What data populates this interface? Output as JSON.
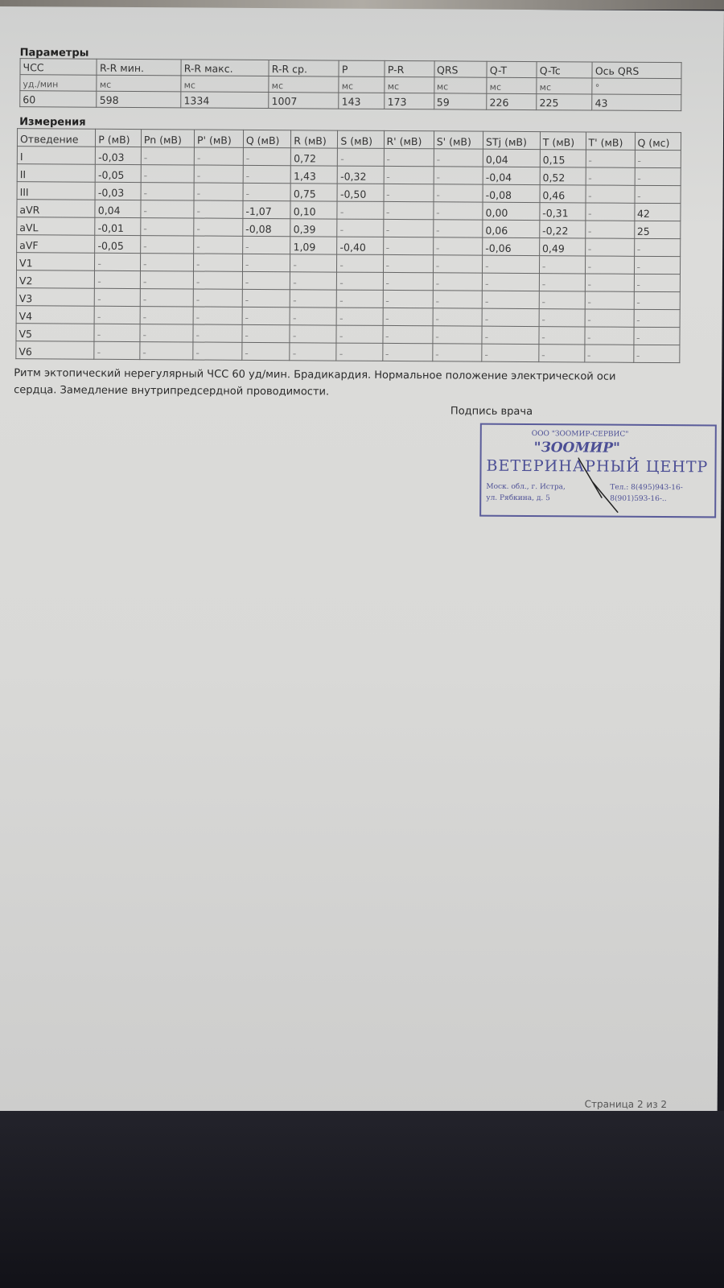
{
  "params": {
    "title": "Параметры",
    "headers": [
      "ЧСС",
      "R-R мин.",
      "R-R макс.",
      "R-R ср.",
      "P",
      "P-R",
      "QRS",
      "Q-T",
      "Q-Tc",
      "Ось QRS"
    ],
    "units": [
      "уд./мин",
      "мс",
      "мс",
      "мс",
      "мс",
      "мс",
      "мс",
      "мс",
      "мс",
      "°"
    ],
    "values": [
      "60",
      "598",
      "1334",
      "1007",
      "143",
      "173",
      "59",
      "226",
      "225",
      "43"
    ]
  },
  "measurements": {
    "title": "Измерения",
    "headers": [
      "Отведение",
      "P (мВ)",
      "Pn (мВ)",
      "P' (мВ)",
      "Q (мВ)",
      "R (мВ)",
      "S (мВ)",
      "R' (мВ)",
      "S' (мВ)",
      "STj (мВ)",
      "T (мВ)",
      "T' (мВ)",
      "Q (мс)"
    ],
    "rows": [
      [
        "I",
        "-0,03",
        "-",
        "-",
        "-",
        "0,72",
        "-",
        "-",
        "-",
        "0,04",
        "0,15",
        "-",
        "-"
      ],
      [
        "II",
        "-0,05",
        "-",
        "-",
        "-",
        "1,43",
        "-0,32",
        "-",
        "-",
        "-0,04",
        "0,52",
        "-",
        "-"
      ],
      [
        "III",
        "-0,03",
        "-",
        "-",
        "-",
        "0,75",
        "-0,50",
        "-",
        "-",
        "-0,08",
        "0,46",
        "-",
        "-"
      ],
      [
        "aVR",
        "0,04",
        "-",
        "-",
        "-1,07",
        "0,10",
        "-",
        "-",
        "-",
        "0,00",
        "-0,31",
        "-",
        "42"
      ],
      [
        "aVL",
        "-0,01",
        "-",
        "-",
        "-0,08",
        "0,39",
        "-",
        "-",
        "-",
        "0,06",
        "-0,22",
        "-",
        "25"
      ],
      [
        "aVF",
        "-0,05",
        "-",
        "-",
        "-",
        "1,09",
        "-0,40",
        "-",
        "-",
        "-0,06",
        "0,49",
        "-",
        "-"
      ],
      [
        "V1",
        "-",
        "-",
        "-",
        "-",
        "-",
        "-",
        "-",
        "-",
        "-",
        "-",
        "-",
        "-"
      ],
      [
        "V2",
        "-",
        "-",
        "-",
        "-",
        "-",
        "-",
        "-",
        "-",
        "-",
        "-",
        "-",
        "-"
      ],
      [
        "V3",
        "-",
        "-",
        "-",
        "-",
        "-",
        "-",
        "-",
        "-",
        "-",
        "-",
        "-",
        "-"
      ],
      [
        "V4",
        "-",
        "-",
        "-",
        "-",
        "-",
        "-",
        "-",
        "-",
        "-",
        "-",
        "-",
        "-"
      ],
      [
        "V5",
        "-",
        "-",
        "-",
        "-",
        "-",
        "-",
        "-",
        "-",
        "-",
        "-",
        "-",
        "-"
      ],
      [
        "V6",
        "-",
        "-",
        "-",
        "-",
        "-",
        "-",
        "-",
        "-",
        "-",
        "-",
        "-",
        "-"
      ]
    ]
  },
  "conclusion": {
    "line1": "Ритм эктопический нерегулярный ЧСС 60 уд/мин. Брадикардия. Нормальное положение электрической оси",
    "line2": "сердца. Замедление внутрипредсердной проводимости."
  },
  "signature_label": "Подпись врача",
  "stamp": {
    "org": "ООО \"ЗООМИР-СЕРВИС\"",
    "name": "\"ЗООМИР\"",
    "center": "ВЕТЕРИНАРНЫЙ ЦЕНТР",
    "address": [
      "Моск. обл., г. Истра,",
      "ул. Рябкина, д. 5"
    ],
    "phones": [
      "Тел.: 8(495)943-16-",
      "8(901)593-16-.."
    ],
    "color": "#4c4f95"
  },
  "footer": "Страница 2 из 2"
}
